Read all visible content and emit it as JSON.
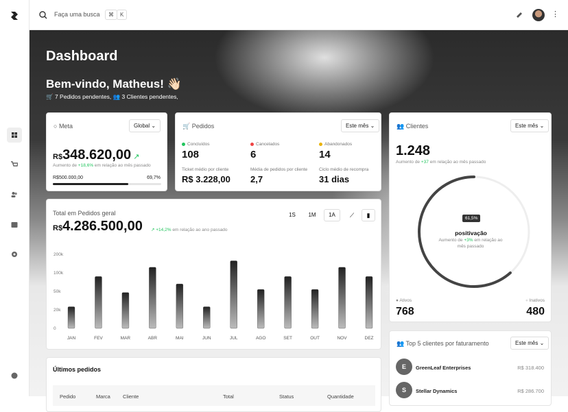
{
  "header": {
    "search_placeholder": "Faça uma busca",
    "shortcut": [
      "⌘",
      "K"
    ]
  },
  "page": {
    "title": "Dashboard",
    "greeting": "Bem-vindo, Matheus! 👋🏻",
    "pending": [
      "7 Pedidos pendentes,",
      "3 Clientes pendentes,"
    ]
  },
  "meta": {
    "title": "Meta",
    "filter": "Global",
    "currency": "R$",
    "amount": "348.620,00",
    "change": {
      "prefix": "Aumento de",
      "value": "+18,6%",
      "suffix": "em relação ao mês passado"
    },
    "target": "R$500.000,00",
    "progress": {
      "value": 69.7,
      "label": "69,7%"
    }
  },
  "orders": {
    "title": "Pedidos",
    "filter": "Este mês",
    "stats": [
      {
        "label": "Concluídos",
        "value": "108",
        "color": "#22c55e"
      },
      {
        "label": "Cancelados",
        "value": "6",
        "color": "#ef4444"
      },
      {
        "label": "Abandonados",
        "value": "14",
        "color": "#eab308"
      }
    ],
    "metrics": [
      {
        "label": "Ticket médio por cliente",
        "value": "R$ 3.228,00"
      },
      {
        "label": "Média de pedidos por cliente",
        "value": "2,7"
      },
      {
        "label": "Ciclo médio de recompra",
        "value": "31 dias"
      }
    ]
  },
  "clients": {
    "title": "Clientes",
    "filter": "Este mês",
    "total": "1.248",
    "change": {
      "prefix": "Aumento de",
      "value": "+37",
      "suffix": "em relação ao mês passado"
    },
    "ring": {
      "value": 61.5,
      "label": "61,5%"
    },
    "ring_title": "positivação",
    "ring_note": {
      "prefix": "Aumento de",
      "value": "+3%",
      "suffix": "em relação ao mês passado"
    },
    "active": {
      "label": "Ativos",
      "value": "768"
    },
    "inactive": {
      "label": "Inativos",
      "value": "480"
    }
  },
  "revenue": {
    "title": "Total em Pedidos geral",
    "currency": "R$",
    "amount": "4.286.500,00",
    "change": {
      "value": "+14,2%",
      "suffix": "em relação ao ano passado"
    },
    "periods": [
      "1S",
      "1M",
      "1A"
    ],
    "chart_data": {
      "type": "bar",
      "categories": [
        "JAN",
        "FEV",
        "MAR",
        "ABR",
        "MAI",
        "JUN",
        "JUL",
        "AGO",
        "SET",
        "OUT",
        "NOV",
        "DEZ"
      ],
      "values": [
        25000,
        90000,
        48000,
        130000,
        70000,
        25000,
        165000,
        55000,
        90000,
        55000,
        130000,
        90000
      ],
      "ylim": [
        0,
        200000
      ],
      "yticks": [
        0,
        {
          "value": 20000,
          "label": "20k"
        },
        {
          "value": 50000,
          "label": "50k"
        },
        {
          "value": 100000,
          "label": "100k"
        },
        {
          "value": 200000,
          "label": "200k"
        }
      ],
      "color": "#2a2a2a"
    }
  },
  "top_clients": {
    "title": "Top 5 clientes por faturamento",
    "filter": "Este mês",
    "clients": [
      {
        "initial": "E",
        "name": "GreenLeaf Enterprises",
        "value": "R$ 318.400"
      },
      {
        "initial": "S",
        "name": "Stellar Dynamics",
        "value": "R$ 286.700"
      }
    ]
  },
  "latest_orders": {
    "title": "Últimos pedidos",
    "columns": [
      "Pedido",
      "Marca",
      "Cliente",
      "Total",
      "Status",
      "Quantidade"
    ]
  }
}
